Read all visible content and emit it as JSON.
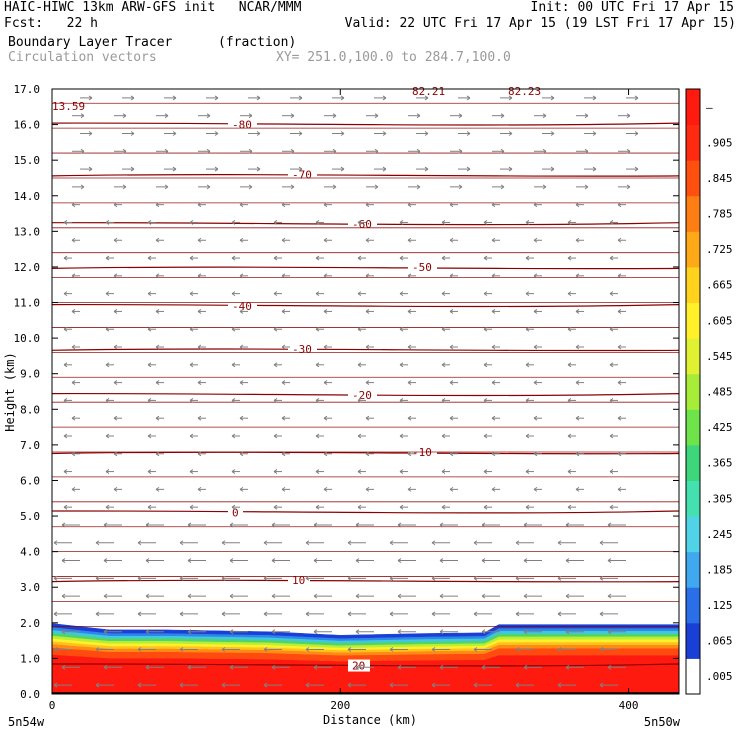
{
  "header": {
    "line1_left": "HAIC-HIWC 13km ARW-GFS init   NCAR/MMM",
    "line1_right": "Init: 00 UTC Fri 17 Apr 15",
    "line2_left": "Fcst:   22 h",
    "line2_right": "Valid: 22 UTC Fri 17 Apr 15 (19 LST Fri 17 Apr 15)",
    "line3_left": "Boundary Layer Tracer",
    "line3_units": "(fraction)",
    "line4_left": "Circulation vectors",
    "line4_right": "XY= 251.0,100.0 to 284.7,100.0"
  },
  "colors": {
    "contour": "#8b0000",
    "vector": "#808080"
  },
  "chart_data": {
    "type": "heatmap",
    "xlabel": "Distance (km)",
    "ylabel": "Height (km)",
    "xlim": [
      0,
      435
    ],
    "ylim": [
      0,
      17
    ],
    "x_ticks": [
      0,
      200,
      400
    ],
    "y_ticks": [
      "0.0",
      "1.0",
      "2.0",
      "3.0",
      "4.0",
      "5.0",
      "6.0",
      "7.0",
      "8.0",
      "9.0",
      "10.0",
      "11.0",
      "12.0",
      "13.0",
      "14.0",
      "15.0",
      "16.0",
      "17.0"
    ],
    "x_endpoint_labels": {
      "left": "5n54w",
      "right": "5n50w"
    },
    "top_labels": [
      "82.21",
      "82.23",
      "13.59"
    ],
    "colorbar": {
      "labels": [
        ".005",
        ".065",
        ".125",
        ".185",
        ".245",
        ".305",
        ".365",
        ".425",
        ".485",
        ".545",
        ".605",
        ".665",
        ".725",
        ".785",
        ".845",
        ".905",
        "–"
      ],
      "colors": [
        "#ffffff",
        "#1a3fd6",
        "#2a6fe8",
        "#3fa8ee",
        "#50d3e6",
        "#45e0b0",
        "#3ed67a",
        "#6ee34a",
        "#a8ec3a",
        "#e0f032",
        "#fff02a",
        "#ffd21e",
        "#ffa918",
        "#ff7e14",
        "#ff5010",
        "#ff2a10",
        "#ff1a10"
      ]
    },
    "temperature_contours": [
      {
        "label": "-80",
        "height": 16.0
      },
      {
        "label": "-70",
        "height": 14.6
      },
      {
        "label": "-60",
        "height": 13.2
      },
      {
        "label": "-50",
        "height": 12.0
      },
      {
        "label": "-40",
        "height": 10.9
      },
      {
        "label": "-30",
        "height": 9.7
      },
      {
        "label": "-20",
        "height": 8.4
      },
      {
        "label": "-10",
        "height": 6.8
      },
      {
        "label": "0",
        "height": 5.1
      },
      {
        "label": "10",
        "height": 3.2
      },
      {
        "label": "20",
        "height": 0.8
      }
    ],
    "tracer_top_km": [
      [
        0,
        1.98
      ],
      [
        40,
        1.8
      ],
      [
        80,
        1.8
      ],
      [
        150,
        1.75
      ],
      [
        200,
        1.65
      ],
      [
        260,
        1.7
      ],
      [
        300,
        1.72
      ],
      [
        310,
        1.95
      ],
      [
        350,
        1.95
      ],
      [
        435,
        1.95
      ]
    ]
  }
}
